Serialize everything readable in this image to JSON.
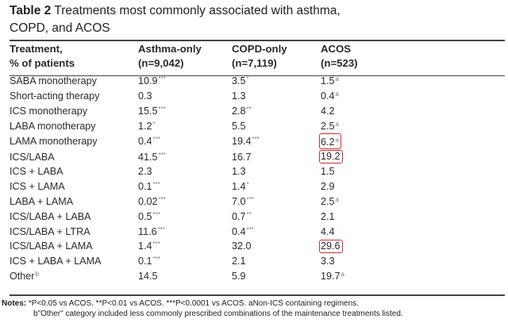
{
  "title": {
    "label": "Table 2",
    "text_line1": "Treatments most commonly associated with asthma,",
    "text_line2": "COPD, and ACOS"
  },
  "header": {
    "col1_line1": "Treatment,",
    "col1_line2": "% of patients",
    "col2_line1": "Asthma-only",
    "col2_line2": "(n=9,042)",
    "col3_line1": "COPD-only",
    "col3_line2": "(n=7,119)",
    "col4_line1": "ACOS",
    "col4_line2": "(n=523)"
  },
  "rows": [
    {
      "treatment": "SABA monotherapy",
      "treatment_sup": "",
      "asthma": "10.9",
      "asthma_sig": "***",
      "copd": "3.5",
      "copd_sig": "*",
      "acos": "1.5",
      "acos_sup": "a",
      "acos_highlight": false
    },
    {
      "treatment": "Short-acting therapy",
      "treatment_sup": "",
      "asthma": "0.3",
      "asthma_sig": "",
      "copd": "1.3",
      "copd_sig": "",
      "acos": "0.4",
      "acos_sup": "a",
      "acos_highlight": false
    },
    {
      "treatment": "ICS monotherapy",
      "treatment_sup": "",
      "asthma": "15.5",
      "asthma_sig": "***",
      "copd": "2.8",
      "copd_sig": "**",
      "acos": "4.2",
      "acos_sup": "",
      "acos_highlight": false
    },
    {
      "treatment": "LABA monotherapy",
      "treatment_sup": "",
      "asthma": "1.2",
      "asthma_sig": "*",
      "copd": "5.5",
      "copd_sig": "",
      "acos": "2.5",
      "acos_sup": "a",
      "acos_highlight": false
    },
    {
      "treatment": "LAMA monotherapy",
      "treatment_sup": "",
      "asthma": "0.4",
      "asthma_sig": "***",
      "copd": "19.4",
      "copd_sig": "***",
      "acos": "6.2",
      "acos_sup": "a",
      "acos_highlight": true
    },
    {
      "treatment": "ICS/LABA",
      "treatment_sup": "",
      "asthma": "41.5",
      "asthma_sig": "***",
      "copd": "16.7",
      "copd_sig": "",
      "acos": "19.2",
      "acos_sup": "",
      "acos_highlight": true
    },
    {
      "treatment": "ICS + LABA",
      "treatment_sup": "",
      "asthma": "2.3",
      "asthma_sig": "",
      "copd": "1.3",
      "copd_sig": "",
      "acos": "1.5",
      "acos_sup": "",
      "acos_highlight": false
    },
    {
      "treatment": "ICS + LAMA",
      "treatment_sup": "",
      "asthma": "0.1",
      "asthma_sig": "***",
      "copd": "1.4",
      "copd_sig": "*",
      "acos": "2.9",
      "acos_sup": "",
      "acos_highlight": false
    },
    {
      "treatment": "LABA + LAMA",
      "treatment_sup": "",
      "asthma": "0.02",
      "asthma_sig": "***",
      "copd": "7.0",
      "copd_sig": "***",
      "acos": "2.5",
      "acos_sup": "a",
      "acos_highlight": false
    },
    {
      "treatment": "ICS/LABA + LABA",
      "treatment_sup": "",
      "asthma": "0.5",
      "asthma_sig": "***",
      "copd": "0.7",
      "copd_sig": "**",
      "acos": "2.1",
      "acos_sup": "",
      "acos_highlight": false
    },
    {
      "treatment": "ICS/LABA + LTRA",
      "treatment_sup": "",
      "asthma": "11.6",
      "asthma_sig": "***",
      "copd": "0.4",
      "copd_sig": "***",
      "acos": "4.4",
      "acos_sup": "",
      "acos_highlight": false
    },
    {
      "treatment": "ICS/LABA + LAMA",
      "treatment_sup": "",
      "asthma": "1.4",
      "asthma_sig": "***",
      "copd": "32.0",
      "copd_sig": "",
      "acos": "29.6",
      "acos_sup": "",
      "acos_highlight": true
    },
    {
      "treatment": "ICS + LABA + LAMA",
      "treatment_sup": "",
      "asthma": "0.1",
      "asthma_sig": "***",
      "copd": "2.1",
      "copd_sig": "",
      "acos": "3.3",
      "acos_sup": "",
      "acos_highlight": false
    },
    {
      "treatment": "Other",
      "treatment_sup": "b",
      "asthma": "14.5",
      "asthma_sig": "",
      "copd": "5.9",
      "copd_sig": "",
      "acos": "19.7",
      "acos_sup": "a",
      "acos_highlight": false
    }
  ],
  "notes": {
    "label": "Notes:",
    "line1": "*P<0.05 vs ACOS. **P<0.01 vs ACOS. ***P<0.0001 vs ACOS. aNon-ICS containing regimens.",
    "line2": "b\"Other\" category included less commonly prescribed combinations of the maintenance treatments listed."
  },
  "colors": {
    "highlight_box": "#d92b2b",
    "rule": "#444444",
    "significance_marks": "#7a7a7a"
  }
}
